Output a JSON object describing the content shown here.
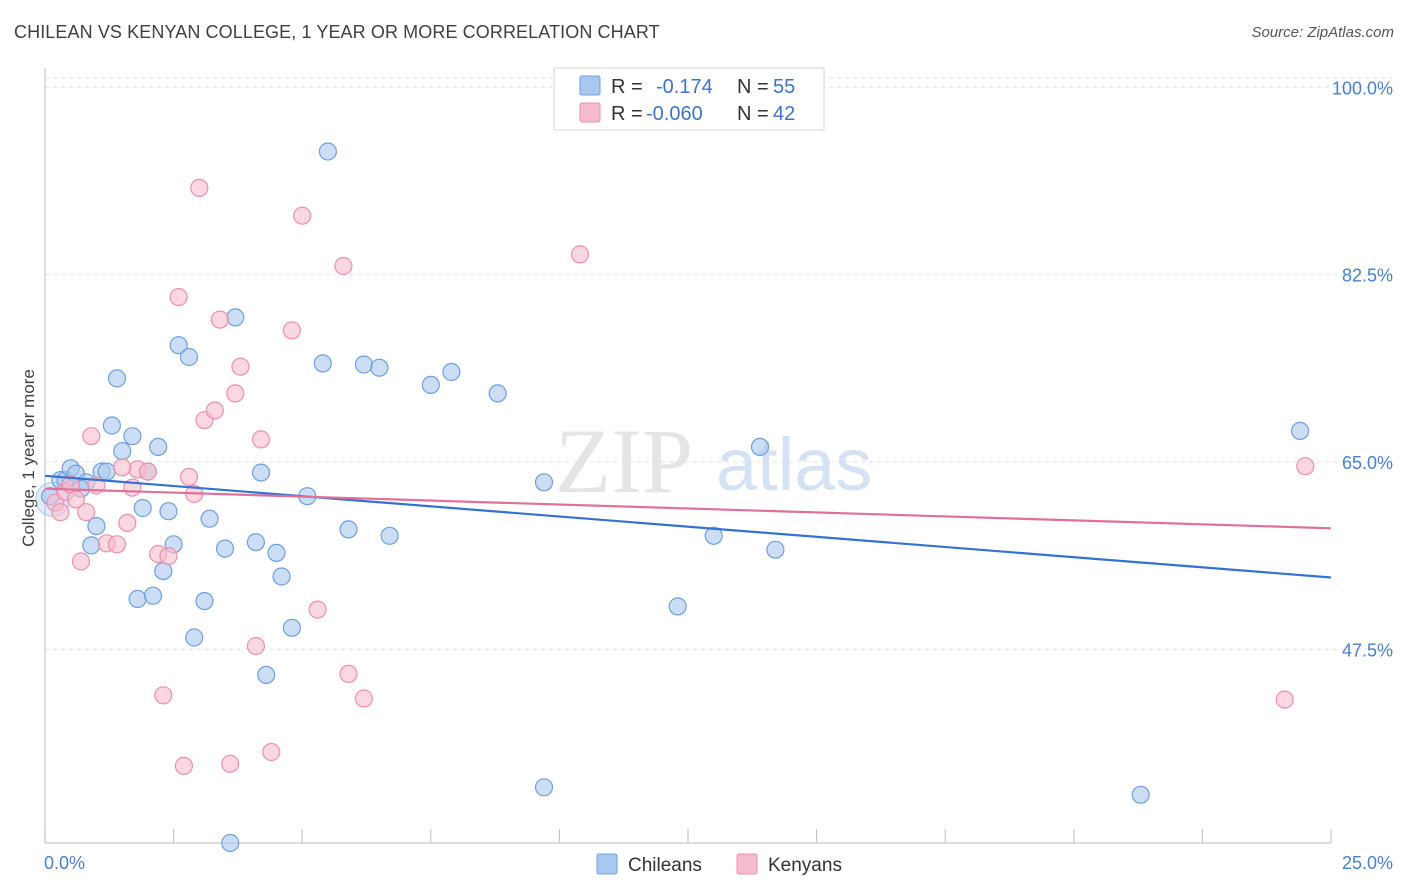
{
  "title": "CHILEAN VS KENYAN COLLEGE, 1 YEAR OR MORE CORRELATION CHART",
  "source": "Source: ZipAtlas.com",
  "watermark": {
    "part1": "ZIP",
    "part2": "atlas"
  },
  "colors": {
    "chileans_fill": "#a9c8f0",
    "chileans_stroke": "#6f9fdc",
    "chileans_line": "#3472d1",
    "kenyans_fill": "#f6bccd",
    "kenyans_stroke": "#ec90ad",
    "kenyans_line": "#e0709a",
    "axis_label": "#4a7fcc",
    "grid": "#dde1e6"
  },
  "chart_data": {
    "type": "scatter",
    "title": "CHILEAN VS KENYAN COLLEGE, 1 YEAR OR MORE CORRELATION CHART",
    "xlabel": "",
    "ylabel": "College, 1 year or more",
    "xlim": [
      0,
      25
    ],
    "ylim": [
      29.4,
      101.8
    ],
    "x_tick_labels": [
      "0.0%",
      "25.0%"
    ],
    "y_ticks": [
      100.0,
      82.5,
      65.0,
      47.5
    ],
    "y_tick_labels": [
      "100.0%",
      "82.5%",
      "65.0%",
      "47.5%"
    ],
    "grid": true,
    "legend": {
      "placement": "top-center",
      "rows": [
        {
          "r_label": "R =",
          "r_value": "-0.174",
          "n_label": "N =",
          "n_value": "55"
        },
        {
          "r_label": "R =",
          "r_value": "-0.060",
          "n_label": "N =",
          "n_value": "42"
        }
      ]
    },
    "series": [
      {
        "name": "Chileans",
        "trend": {
          "x": [
            0,
            25
          ],
          "y": [
            63.7,
            54.2
          ]
        },
        "points": [
          [
            0.1,
            61.8
          ],
          [
            0.3,
            63.3
          ],
          [
            0.4,
            63.3
          ],
          [
            0.5,
            64.4
          ],
          [
            0.6,
            63.9
          ],
          [
            0.8,
            63.1
          ],
          [
            0.9,
            57.2
          ],
          [
            1.1,
            64.1
          ],
          [
            1.2,
            64.1
          ],
          [
            1.3,
            68.4
          ],
          [
            1.4,
            72.8
          ],
          [
            1.5,
            66.0
          ],
          [
            1.7,
            67.4
          ],
          [
            1.8,
            52.2
          ],
          [
            1.9,
            60.7
          ],
          [
            2.0,
            64.1
          ],
          [
            2.2,
            66.4
          ],
          [
            2.3,
            54.8
          ],
          [
            2.4,
            60.4
          ],
          [
            2.5,
            57.3
          ],
          [
            2.6,
            75.9
          ],
          [
            2.8,
            74.8
          ],
          [
            2.9,
            48.6
          ],
          [
            3.1,
            52.0
          ],
          [
            3.2,
            59.7
          ],
          [
            3.5,
            56.9
          ],
          [
            3.7,
            78.5
          ],
          [
            4.1,
            57.5
          ],
          [
            4.3,
            45.1
          ],
          [
            4.6,
            54.3
          ],
          [
            4.8,
            49.5
          ],
          [
            5.1,
            61.8
          ],
          [
            5.4,
            74.2
          ],
          [
            5.9,
            58.7
          ],
          [
            6.2,
            74.1
          ],
          [
            6.5,
            73.8
          ],
          [
            6.7,
            58.1
          ],
          [
            7.5,
            72.2
          ],
          [
            7.9,
            73.4
          ],
          [
            8.8,
            71.4
          ],
          [
            9.7,
            34.6
          ],
          [
            9.7,
            63.1
          ],
          [
            12.3,
            51.5
          ],
          [
            13.0,
            58.1
          ],
          [
            13.9,
            66.4
          ],
          [
            14.2,
            56.8
          ],
          [
            21.3,
            33.9
          ],
          [
            24.4,
            67.9
          ],
          [
            4.2,
            64.0
          ],
          [
            3.6,
            29.4
          ],
          [
            4.5,
            56.5
          ],
          [
            2.1,
            52.5
          ],
          [
            1.0,
            59.0
          ],
          [
            0.7,
            62.5
          ],
          [
            5.5,
            94.0
          ]
        ]
      },
      {
        "name": "Kenyans",
        "trend": {
          "x": [
            0,
            25
          ],
          "y": [
            62.5,
            58.8
          ]
        },
        "points": [
          [
            0.2,
            61.2
          ],
          [
            0.3,
            60.3
          ],
          [
            0.4,
            62.2
          ],
          [
            0.5,
            62.9
          ],
          [
            0.7,
            55.7
          ],
          [
            0.8,
            60.3
          ],
          [
            0.9,
            67.4
          ],
          [
            1.0,
            62.8
          ],
          [
            1.2,
            57.4
          ],
          [
            1.4,
            57.3
          ],
          [
            1.6,
            59.3
          ],
          [
            1.7,
            62.6
          ],
          [
            1.8,
            64.3
          ],
          [
            2.0,
            64.1
          ],
          [
            2.2,
            56.4
          ],
          [
            2.3,
            43.2
          ],
          [
            2.4,
            56.2
          ],
          [
            2.6,
            80.4
          ],
          [
            2.7,
            36.6
          ],
          [
            2.8,
            63.6
          ],
          [
            2.9,
            62.0
          ],
          [
            3.0,
            90.6
          ],
          [
            3.1,
            68.9
          ],
          [
            3.3,
            69.8
          ],
          [
            3.4,
            78.3
          ],
          [
            3.6,
            36.8
          ],
          [
            3.7,
            71.4
          ],
          [
            3.8,
            73.9
          ],
          [
            4.1,
            47.8
          ],
          [
            4.2,
            67.1
          ],
          [
            4.4,
            37.9
          ],
          [
            4.8,
            77.3
          ],
          [
            5.0,
            88.0
          ],
          [
            5.3,
            51.2
          ],
          [
            5.8,
            83.3
          ],
          [
            5.9,
            45.2
          ],
          [
            6.2,
            42.9
          ],
          [
            10.4,
            84.4
          ],
          [
            24.1,
            42.8
          ],
          [
            24.5,
            64.6
          ],
          [
            1.5,
            64.5
          ],
          [
            0.6,
            61.5
          ]
        ]
      }
    ]
  }
}
